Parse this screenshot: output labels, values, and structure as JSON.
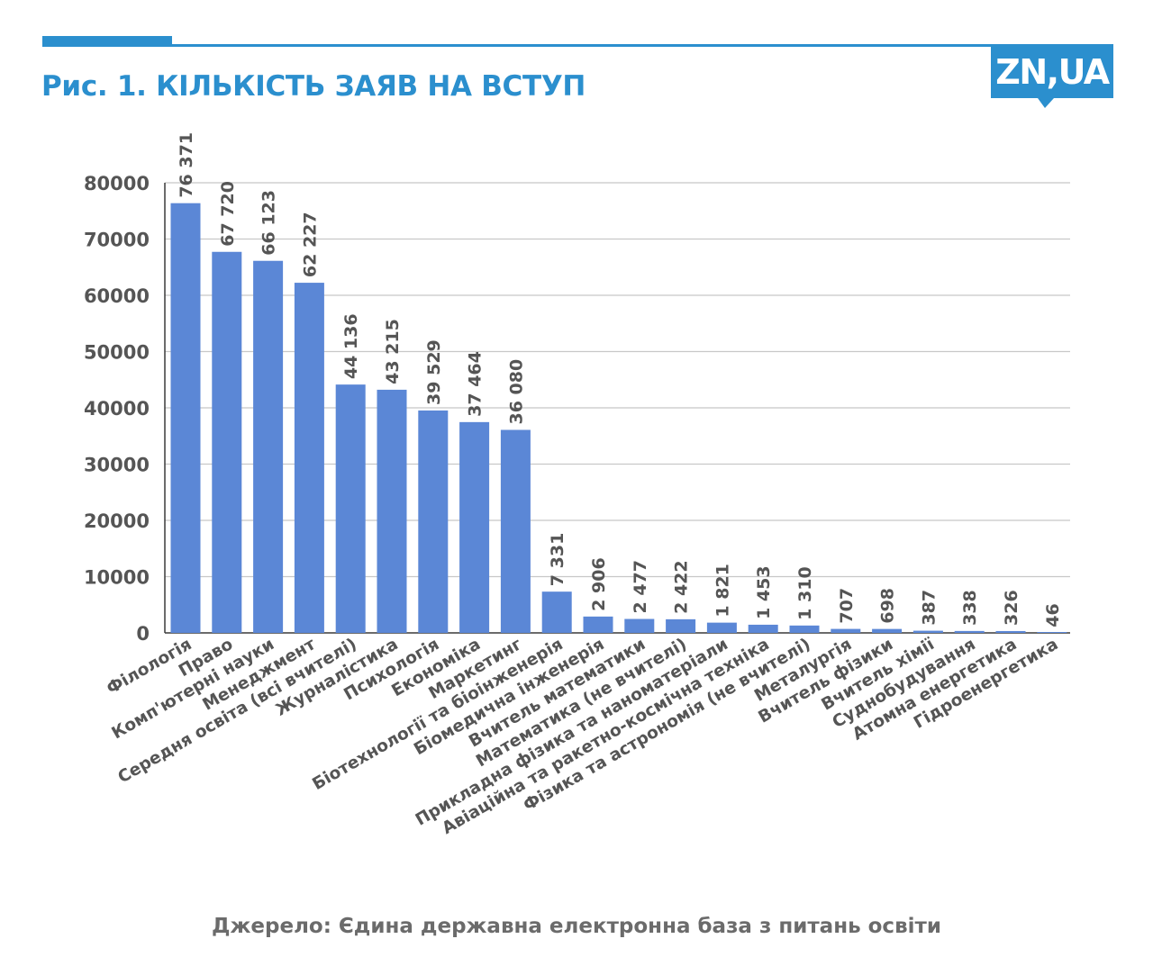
{
  "header": {
    "title": "Рис. 1. КІЛЬКІСТЬ ЗАЯВ НА ВСТУП",
    "logo_text": "ZN,UA"
  },
  "footer": {
    "source": "Джерело: Єдина державна електронна база з питань освіти"
  },
  "colors": {
    "accent": "#2b8fce",
    "bar": "#5b87d6",
    "axis_text": "#555555",
    "grid": "#c8c8c8"
  },
  "chart_data": {
    "type": "bar",
    "title": "Рис. 1. КІЛЬКІСТЬ ЗАЯВ НА ВСТУП",
    "xlabel": "",
    "ylabel": "",
    "ylim": [
      0,
      80000
    ],
    "yticks": [
      0,
      10000,
      20000,
      30000,
      40000,
      50000,
      60000,
      70000,
      80000
    ],
    "grid": true,
    "categories": [
      "Філологія",
      "Право",
      "Комп'ютерні науки",
      "Менеджмент",
      "Середня освіта (всі вчителі)",
      "Журналістика",
      "Психологія",
      "Економіка",
      "Маркетинг",
      "Біотехнології та біоінженерія",
      "Біомедична інженерія",
      "Вчитель математики",
      "Математика (не вчителі)",
      "Прикладна фізика та наноматеріали",
      "Авіаційна та ракетно-космічна техніка",
      "Фізика та астрономія (не вчителі)",
      "Металургія",
      "Вчитель фізики",
      "Вчитель хімії",
      "Суднобудування",
      "Атомна енергетика",
      "Гідроенергетика"
    ],
    "values": [
      76371,
      67720,
      66123,
      62227,
      44136,
      43215,
      39529,
      37464,
      36080,
      7331,
      2906,
      2477,
      2422,
      1821,
      1453,
      1310,
      707,
      698,
      387,
      338,
      326,
      46
    ],
    "value_labels": [
      "76 371",
      "67 720",
      "66 123",
      "62 227",
      "44 136",
      "43 215",
      "39 529",
      "37 464",
      "36 080",
      "7 331",
      "2 906",
      "2 477",
      "2 422",
      "1 821",
      "1 453",
      "1 310",
      "707",
      "698",
      "387",
      "338",
      "326",
      "46"
    ]
  }
}
